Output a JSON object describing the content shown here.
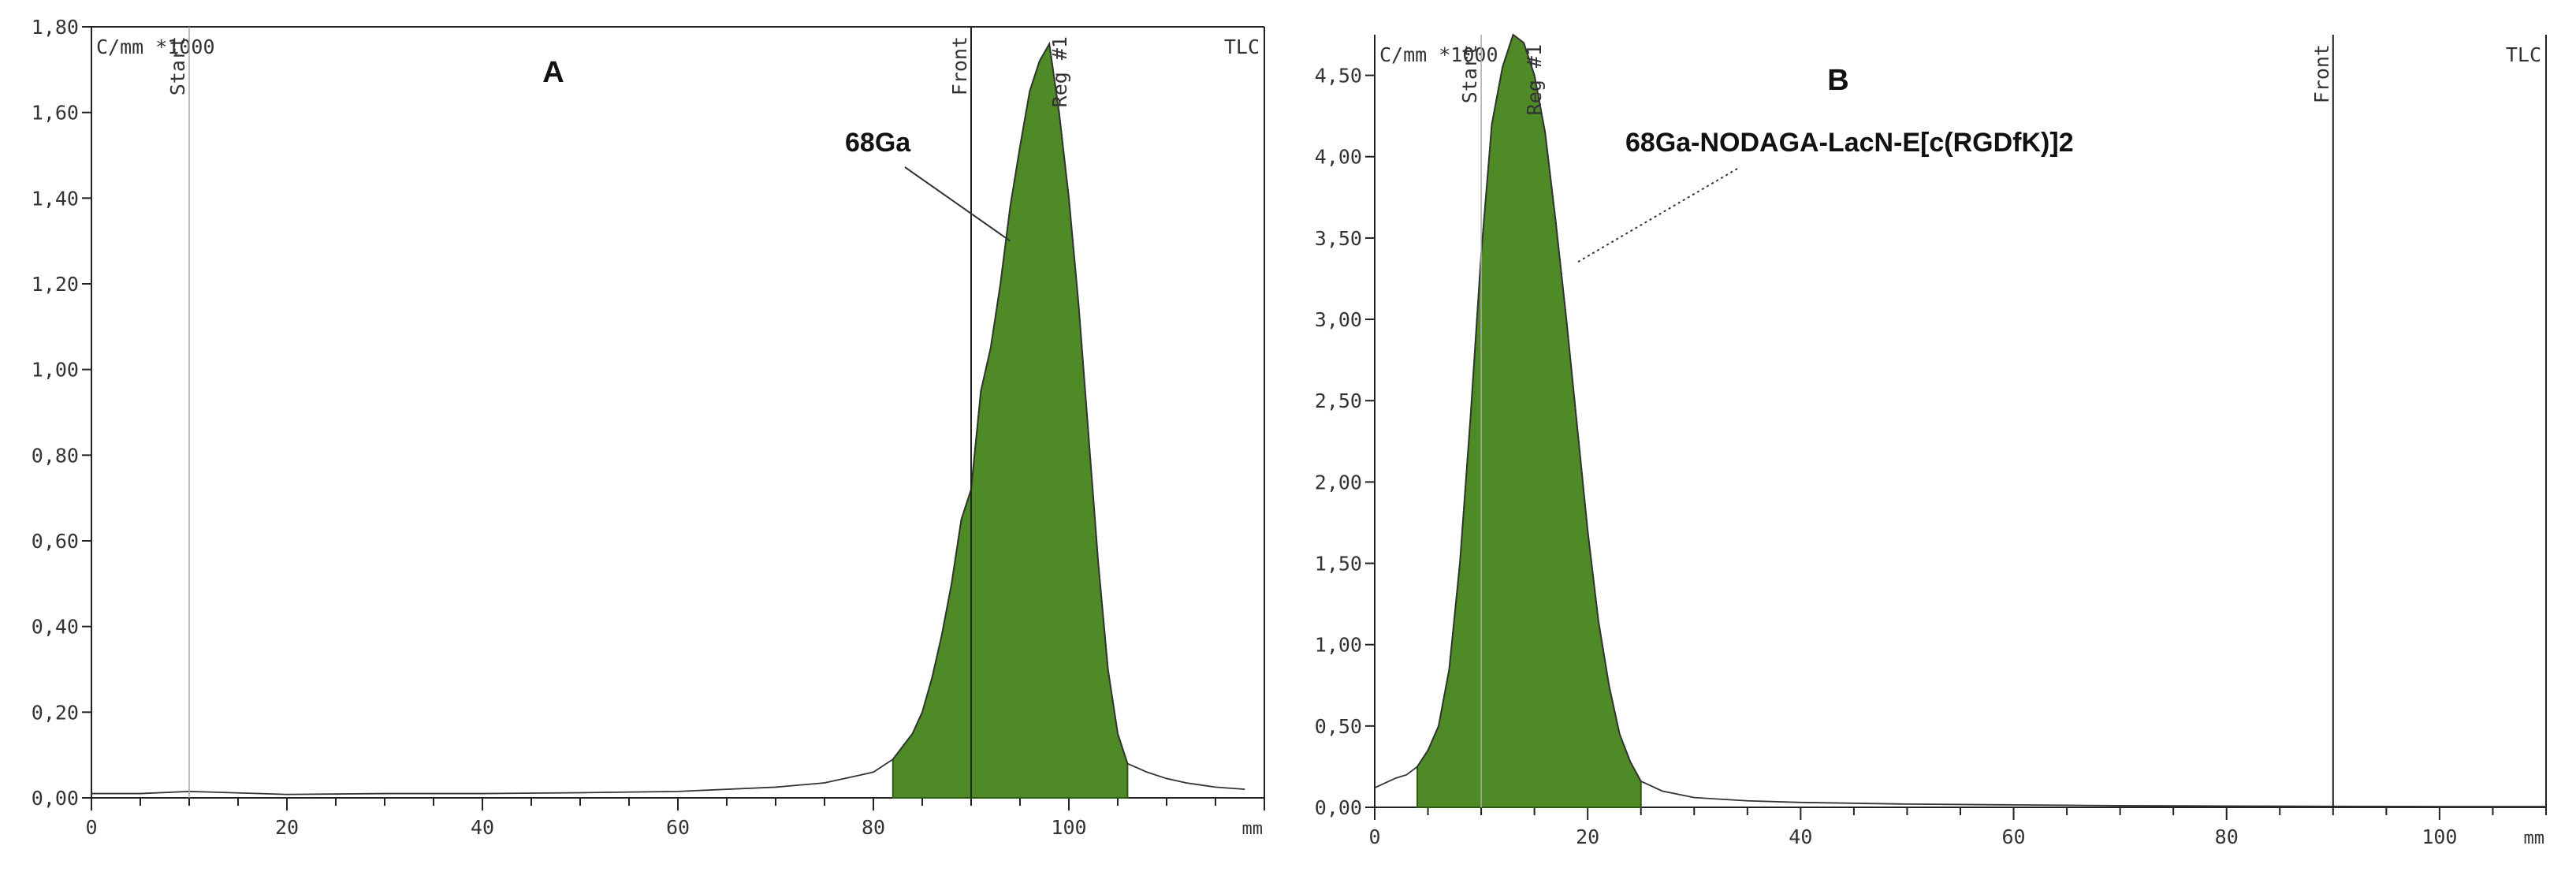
{
  "chart_data": [
    {
      "type": "area",
      "panel_label": "A",
      "unit_label": "C/mm *1000",
      "method_label": "TLC",
      "xlabel": "mm",
      "xlim": [
        0,
        120
      ],
      "ylim": [
        0,
        1.8
      ],
      "x_ticks": [
        0,
        20,
        40,
        60,
        80,
        100
      ],
      "x_tick_labels": [
        "0",
        "20",
        "40",
        "60",
        "80",
        "100"
      ],
      "y_ticks": [
        0,
        0.2,
        0.4,
        0.6,
        0.8,
        1.0,
        1.2,
        1.4,
        1.6,
        1.8
      ],
      "y_tick_labels": [
        "0,00",
        "0,20",
        "0,40",
        "0,60",
        "0,80",
        "1,00",
        "1,20",
        "1,40",
        "1,60",
        "1,80"
      ],
      "markers": [
        {
          "label": "Start",
          "x": 10
        },
        {
          "label": "Front",
          "x": 90
        },
        {
          "label": "Reg #1",
          "x": 98
        }
      ],
      "region": {
        "label": "Reg #1",
        "x_start": 82,
        "x_end": 106
      },
      "annotation": {
        "text": "68Ga",
        "x": 94,
        "y": 1.3
      },
      "series": [
        {
          "x": [
            0,
            5,
            10,
            20,
            30,
            40,
            50,
            60,
            65,
            70,
            75,
            78,
            80,
            82,
            84,
            85,
            86,
            87,
            88,
            89,
            90,
            91,
            92,
            93,
            94,
            95,
            96,
            97,
            98,
            99,
            100,
            101,
            102,
            103,
            104,
            105,
            106,
            107,
            108,
            110,
            112,
            115,
            118
          ],
          "y": [
            0.01,
            0.01,
            0.015,
            0.008,
            0.01,
            0.01,
            0.012,
            0.015,
            0.02,
            0.025,
            0.035,
            0.05,
            0.06,
            0.09,
            0.15,
            0.2,
            0.28,
            0.38,
            0.5,
            0.65,
            0.72,
            0.95,
            1.05,
            1.2,
            1.38,
            1.52,
            1.65,
            1.72,
            1.76,
            1.6,
            1.4,
            1.15,
            0.85,
            0.55,
            0.3,
            0.15,
            0.08,
            0.07,
            0.06,
            0.045,
            0.035,
            0.025,
            0.02
          ]
        }
      ]
    },
    {
      "type": "area",
      "panel_label": "B",
      "unit_label": "C/mm *1000",
      "method_label": "TLC",
      "xlabel": "mm",
      "xlim": [
        0,
        110
      ],
      "ylim": [
        0,
        4.75
      ],
      "x_ticks": [
        0,
        20,
        40,
        60,
        80,
        100
      ],
      "x_tick_labels": [
        "0",
        "20",
        "40",
        "60",
        "80",
        "100"
      ],
      "y_ticks": [
        0,
        0.5,
        1.0,
        1.5,
        2.0,
        2.5,
        3.0,
        3.5,
        4.0,
        4.5
      ],
      "y_tick_labels": [
        "0,00",
        "0,50",
        "1,00",
        "1,50",
        "2,00",
        "2,50",
        "3,00",
        "3,50",
        "4,00",
        "4,50"
      ],
      "markers": [
        {
          "label": "Start",
          "x": 10
        },
        {
          "label": "Reg #1",
          "x": 14
        },
        {
          "label": "Front",
          "x": 90
        }
      ],
      "region": {
        "label": "Reg #1",
        "x_start": 4,
        "x_end": 25
      },
      "annotation": {
        "text": "68Ga-NODAGA-LacN-E[c(RGDfK)]2",
        "x": 19,
        "y": 3.35
      },
      "series": [
        {
          "x": [
            0,
            2,
            3,
            4,
            5,
            6,
            7,
            8,
            9,
            10,
            11,
            12,
            13,
            14,
            15,
            16,
            17,
            18,
            19,
            20,
            21,
            22,
            23,
            24,
            25,
            27,
            30,
            35,
            40,
            50,
            60,
            70,
            80,
            90,
            100,
            110
          ],
          "y": [
            0.12,
            0.18,
            0.2,
            0.25,
            0.35,
            0.5,
            0.85,
            1.5,
            2.4,
            3.4,
            4.2,
            4.55,
            4.75,
            4.7,
            4.5,
            4.15,
            3.6,
            3.0,
            2.35,
            1.7,
            1.15,
            0.75,
            0.45,
            0.28,
            0.16,
            0.1,
            0.06,
            0.04,
            0.03,
            0.02,
            0.015,
            0.01,
            0.008,
            0.006,
            0.005,
            0.005
          ]
        }
      ]
    }
  ]
}
